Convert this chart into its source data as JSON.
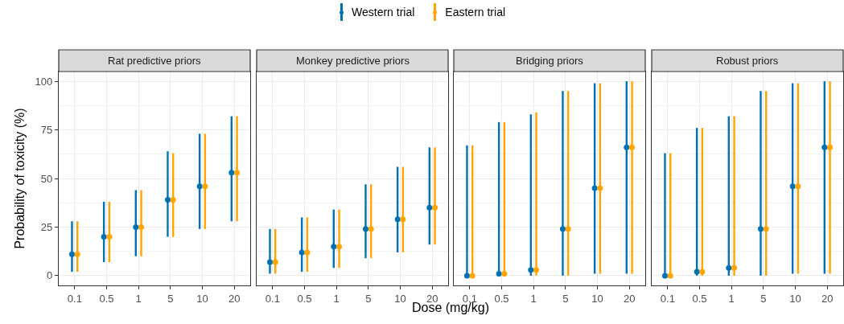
{
  "chart_data": [
    {
      "type": "scatter",
      "title": "Rat predictive priors",
      "ylabel": "Probability of toxicity (%)",
      "legend": "top",
      "grid": true,
      "marker": "circle",
      "categories": [
        "0.1",
        "0.5",
        "1",
        "5",
        "10",
        "20"
      ],
      "ylim": [
        -5,
        105
      ],
      "yticks": [
        0,
        25,
        50,
        75,
        100
      ],
      "series": [
        {
          "name": "Western trial",
          "color": "#0072b2",
          "values": [
            11,
            20,
            25,
            39,
            46,
            53
          ],
          "errors": [
            [
              2,
              28
            ],
            [
              7,
              38
            ],
            [
              10,
              44
            ],
            [
              20,
              64
            ],
            [
              24,
              73
            ],
            [
              28,
              82
            ]
          ]
        },
        {
          "name": "Eastern trial",
          "color": "#ffa500",
          "values": [
            11,
            20,
            25,
            39,
            46,
            53
          ],
          "errors": [
            [
              2,
              28
            ],
            [
              7,
              38
            ],
            [
              10,
              44
            ],
            [
              20,
              63
            ],
            [
              24,
              73
            ],
            [
              28,
              82
            ]
          ]
        }
      ]
    },
    {
      "type": "scatter",
      "title": "Monkey predictive priors",
      "xlabel": "Dose (mg/kg)",
      "tick_labels": "x",
      "grid": true,
      "marker": "circle",
      "categories": [
        "0.1",
        "0.5",
        "1",
        "5",
        "10",
        "20"
      ],
      "ylim": [
        -5,
        105
      ],
      "yticks": [
        0,
        25,
        50,
        75,
        100
      ],
      "series": [
        {
          "name": "Western trial",
          "color": "#0072b2",
          "values": [
            7,
            12,
            15,
            24,
            29,
            35
          ],
          "errors": [
            [
              1,
              24
            ],
            [
              2,
              30
            ],
            [
              4,
              34
            ],
            [
              9,
              47
            ],
            [
              12,
              56
            ],
            [
              16,
              66
            ]
          ]
        },
        {
          "name": "Eastern trial",
          "color": "#ffa500",
          "values": [
            7,
            12,
            15,
            24,
            29,
            35
          ],
          "errors": [
            [
              1,
              24
            ],
            [
              2,
              30
            ],
            [
              4,
              34
            ],
            [
              9,
              47
            ],
            [
              12,
              56
            ],
            [
              16,
              66
            ]
          ]
        }
      ]
    },
    {
      "type": "scatter",
      "title": "Bridging priors",
      "tick_labels": "x",
      "grid": true,
      "marker": "circle",
      "categories": [
        "0.1",
        "0.5",
        "1",
        "5",
        "10",
        "20"
      ],
      "ylim": [
        -5,
        105
      ],
      "yticks": [
        0,
        25,
        50,
        75,
        100
      ],
      "series": [
        {
          "name": "Western trial",
          "color": "#0072b2",
          "values": [
            0,
            1,
            3,
            24,
            45,
            66
          ],
          "errors": [
            [
              0,
              67
            ],
            [
              0,
              79
            ],
            [
              0,
              83
            ],
            [
              0,
              95
            ],
            [
              1,
              99
            ],
            [
              1,
              100
            ]
          ]
        },
        {
          "name": "Eastern trial",
          "color": "#ffa500",
          "values": [
            0,
            1,
            3,
            24,
            45,
            66
          ],
          "errors": [
            [
              0,
              67
            ],
            [
              0,
              79
            ],
            [
              0,
              84
            ],
            [
              0,
              95
            ],
            [
              1,
              99
            ],
            [
              1,
              100
            ]
          ]
        }
      ]
    },
    {
      "type": "scatter",
      "title": "Robust priors",
      "tick_labels": "x",
      "grid": true,
      "marker": "circle",
      "categories": [
        "0.1",
        "0.5",
        "1",
        "5",
        "10",
        "20"
      ],
      "ylim": [
        -5,
        105
      ],
      "yticks": [
        0,
        25,
        50,
        75,
        100
      ],
      "series": [
        {
          "name": "Western trial",
          "color": "#0072b2",
          "values": [
            0,
            2,
            4,
            24,
            46,
            66
          ],
          "errors": [
            [
              0,
              63
            ],
            [
              0,
              76
            ],
            [
              0,
              82
            ],
            [
              0,
              95
            ],
            [
              1,
              99
            ],
            [
              1,
              100
            ]
          ]
        },
        {
          "name": "Eastern trial",
          "color": "#ffa500",
          "values": [
            0,
            2,
            4,
            24,
            46,
            66
          ],
          "errors": [
            [
              0,
              63
            ],
            [
              0,
              76
            ],
            [
              0,
              82
            ],
            [
              0,
              95
            ],
            [
              1,
              99
            ],
            [
              1,
              100
            ]
          ]
        }
      ]
    }
  ]
}
